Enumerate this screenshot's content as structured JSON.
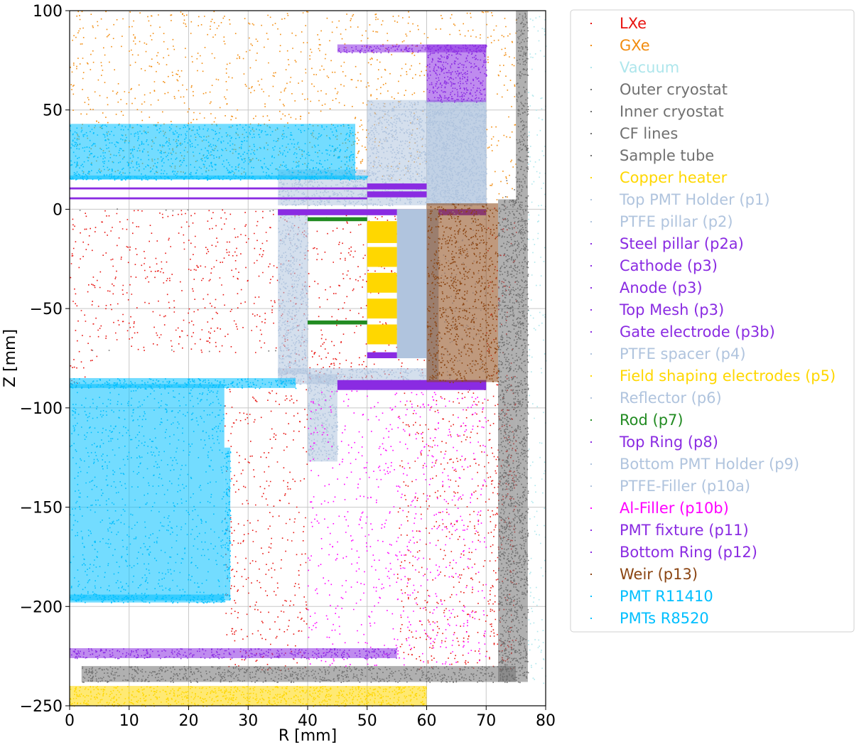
{
  "chart_data": {
    "type": "scatter",
    "xlabel": "R [mm]",
    "ylabel": "Z [mm]",
    "xlim": [
      0,
      80
    ],
    "ylim": [
      -250,
      100
    ],
    "xticks": [
      0,
      10,
      20,
      30,
      40,
      50,
      60,
      70,
      80
    ],
    "yticks": [
      -250,
      -200,
      -150,
      -100,
      -50,
      0,
      50,
      100
    ],
    "xtick_labels": [
      "0",
      "10",
      "20",
      "30",
      "40",
      "50",
      "60",
      "70",
      "80"
    ],
    "ytick_labels": [
      "−250",
      "−200",
      "−150",
      "−100",
      "−50",
      "0",
      "50",
      "100"
    ],
    "grid": true,
    "legend_position": "outside-right",
    "series": [
      {
        "name": "LXe",
        "color": "#e8130f",
        "style": "sparse",
        "regions": [
          [
            0,
            -72,
            35,
            0
          ],
          [
            35,
            -87,
            60,
            0
          ],
          [
            40,
            -87,
            50,
            -72
          ],
          [
            26,
            -232,
            40,
            -90
          ],
          [
            55,
            -232,
            75,
            -90
          ],
          [
            70,
            -232,
            75,
            2
          ],
          [
            0,
            -90,
            5,
            -72
          ]
        ]
      },
      {
        "name": "GXe",
        "color": "#f28c0f",
        "style": "sparse",
        "regions": [
          [
            0,
            43,
            60,
            100
          ],
          [
            48,
            15,
            60,
            43
          ],
          [
            60,
            86,
            72,
            100
          ],
          [
            70,
            5,
            75,
            100
          ],
          [
            1,
            18,
            50,
            44
          ]
        ]
      },
      {
        "name": "Vacuum",
        "color": "#aee6ec",
        "style": "sparse",
        "regions": [
          [
            77,
            -240,
            80,
            100
          ]
        ]
      },
      {
        "name": "Outer cryostat",
        "color": "#707070",
        "style": "sparse",
        "regions": [
          [
            76,
            -240,
            77,
            100
          ]
        ]
      },
      {
        "name": "Inner cryostat",
        "color": "#707070",
        "style": "dense",
        "regions": [
          [
            75,
            -238,
            77,
            100
          ],
          [
            2,
            -238,
            75,
            -230
          ],
          [
            72,
            -238,
            75,
            5
          ]
        ]
      },
      {
        "name": "CF lines",
        "color": "#707070",
        "style": "sparse",
        "regions": [
          [
            73,
            -238,
            76,
            20
          ]
        ]
      },
      {
        "name": "Sample tube",
        "color": "#707070",
        "style": "sparse",
        "regions": [
          [
            0,
            -0.6,
            35,
            0.6
          ],
          [
            0,
            -71.6,
            35,
            -70.6
          ]
        ]
      },
      {
        "name": "Copper heater",
        "color": "#ffd700",
        "style": "dense",
        "regions": [
          [
            0,
            -250,
            60,
            -240
          ]
        ]
      },
      {
        "name": "Top PMT Holder (p1)",
        "color": "#b0c4de",
        "style": "dense",
        "regions": [
          [
            35,
            2,
            70,
            20
          ],
          [
            60,
            2,
            70,
            55
          ],
          [
            50,
            20,
            70,
            55
          ]
        ]
      },
      {
        "name": "PTFE pillar (p2)",
        "color": "#b0c4de",
        "style": "dense",
        "regions": [
          [
            35,
            -83,
            40,
            0
          ],
          [
            40,
            -127,
            45,
            -83
          ]
        ]
      },
      {
        "name": "Steel pillar (p2a)",
        "color": "#8a2be2",
        "style": "dense",
        "regions": [
          [
            45,
            79,
            70,
            83
          ],
          [
            60,
            54,
            70,
            83
          ]
        ]
      },
      {
        "name": "Cathode (p3)",
        "color": "#8a2be2",
        "style": "solid",
        "regions": [
          [
            50,
            -75,
            60,
            -72
          ]
        ]
      },
      {
        "name": "Anode (p3)",
        "color": "#8a2be2",
        "style": "solid",
        "regions": [
          [
            50,
            6,
            60,
            9
          ]
        ]
      },
      {
        "name": "Top Mesh (p3)",
        "color": "#8a2be2",
        "style": "solid",
        "regions": [
          [
            50,
            10,
            60,
            13
          ]
        ]
      },
      {
        "name": "Gate electrode (p3b)",
        "color": "#8a2be2",
        "style": "solid",
        "regions": [
          [
            35,
            -3,
            70,
            0
          ]
        ]
      },
      {
        "name": "PTFE spacer (p4)",
        "color": "#b0c4de",
        "style": "solid",
        "regions": [
          [
            55,
            -75,
            60,
            0
          ]
        ]
      },
      {
        "name": "Field shaping electrodes (p5)",
        "color": "#ffd700",
        "style": "solid",
        "regions": [
          [
            50,
            -17,
            55,
            -6
          ],
          [
            50,
            -29,
            55,
            -19
          ],
          [
            50,
            -42,
            55,
            -32
          ],
          [
            50,
            -55,
            55,
            -45
          ],
          [
            50,
            -68,
            55,
            -58
          ]
        ]
      },
      {
        "name": "Reflector (p6)",
        "color": "#b0c4de",
        "style": "solid",
        "regions": [
          [
            60,
            -87,
            62,
            0
          ]
        ]
      },
      {
        "name": "Rod (p7)",
        "color": "#228b22",
        "style": "solid",
        "regions": [
          [
            40,
            -6,
            50,
            -4
          ],
          [
            40,
            -58,
            50,
            -56
          ]
        ]
      },
      {
        "name": "Top Ring (p8)",
        "color": "#8a2be2",
        "style": "solid",
        "regions": [
          [
            0,
            10,
            50,
            11
          ],
          [
            0,
            5,
            50,
            6
          ]
        ]
      },
      {
        "name": "Bottom PMT Holder (p9)",
        "color": "#b0c4de",
        "style": "dense",
        "regions": [
          [
            35,
            -88,
            60,
            -80
          ]
        ]
      },
      {
        "name": "PTFE-Filler (p10a)",
        "color": "#b0c4de",
        "style": "sparse",
        "regions": [
          [
            62,
            -87,
            70,
            0
          ]
        ]
      },
      {
        "name": "Al-Filler (p10b)",
        "color": "#ff00ff",
        "style": "sparse",
        "regions": [
          [
            40,
            -230,
            70,
            -91
          ],
          [
            45,
            -90,
            70,
            -88
          ]
        ]
      },
      {
        "name": "PMT fixture (p11)",
        "color": "#8a2be2",
        "style": "solid",
        "regions": [
          [
            45,
            -91,
            70,
            -86
          ]
        ]
      },
      {
        "name": "Bottom Ring (p12)",
        "color": "#8a2be2",
        "style": "dense",
        "regions": [
          [
            0,
            -226,
            55,
            -221
          ]
        ]
      },
      {
        "name": "Weir (p13)",
        "color": "#8b4513",
        "style": "dense",
        "regions": [
          [
            60,
            -87,
            72,
            3
          ]
        ]
      },
      {
        "name": "PMT R11410",
        "color": "#00bfff",
        "style": "dense",
        "regions": [
          [
            0,
            -197,
            26,
            -88
          ],
          [
            26,
            -197,
            27,
            -120
          ],
          [
            0,
            -90,
            38,
            -85
          ],
          [
            0,
            -198,
            26,
            -194
          ]
        ]
      },
      {
        "name": "PMTs R8520",
        "color": "#00bfff",
        "style": "dense",
        "regions": [
          [
            0,
            15,
            48,
            43
          ],
          [
            0,
            15,
            50,
            17
          ]
        ]
      }
    ]
  }
}
